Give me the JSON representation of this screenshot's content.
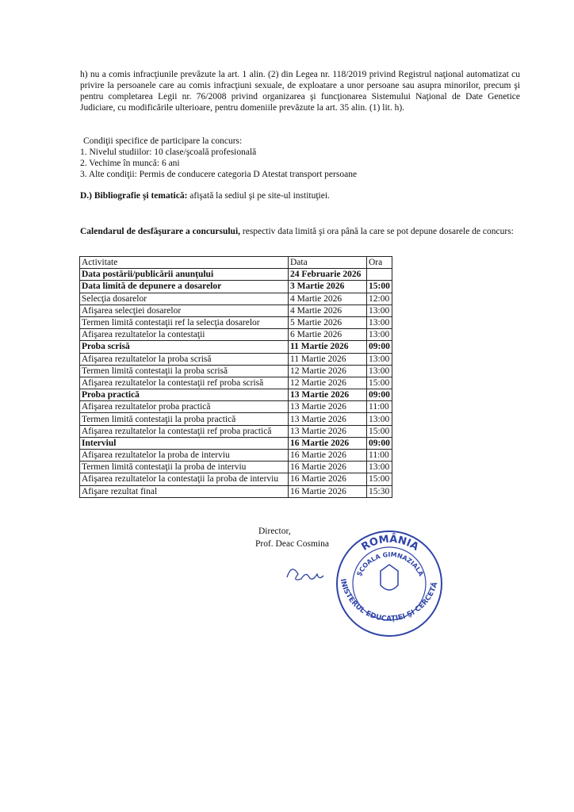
{
  "paragraph_h": "h) nu a comis infracţiunile prevăzute la art. 1 alin. (2) din Legea nr. 118/2019 privind Registrul naţional automatizat cu privire la persoanele care au comis infracţiuni sexuale, de exploatare a unor persoane sau asupra minorilor, precum şi pentru completarea Legii nr. 76/2008 privind organizarea şi funcţionarea Sistemului Naţional de Date Genetice Judiciare, cu modificările ulterioare, pentru domeniile prevăzute la art. 35 alin. (1) lit. h).",
  "conditions": {
    "title": "Condiţii specifice de participare la concurs:",
    "items": [
      "1. Nivelul studiilor: 10 clase/şcoală profesională",
      "2. Vechime în muncă:  6 ani",
      "3. Alte condiţii: Permis de conducere categoria D Atestat transport persoane"
    ]
  },
  "bibliography": {
    "label": "D.) Bibliografie şi tematică:",
    "text": " afişată la sediul şi pe site-ul instituţiei."
  },
  "calendar": {
    "label": "Calendarul de desfăşurare a concursului,",
    "text": " respectiv data limită şi ora până la care se pot depune dosarele de concurs:"
  },
  "table": {
    "header": [
      "Activitate",
      "Data",
      "Ora"
    ],
    "rows": [
      [
        "Data postării/publicării anunţului",
        "24 Februarie 2026",
        ""
      ],
      [
        "Data limită de depunere a dosarelor",
        "3 Martie 2026",
        "15:00"
      ],
      [
        "Selecţia dosarelor",
        "4 Martie 2026",
        "12:00"
      ],
      [
        "Afişarea selecţiei dosarelor",
        "4 Martie 2026",
        "13:00"
      ],
      [
        "Termen limită contestaţii ref la selecţia dosarelor",
        "5 Martie 2026",
        "13:00"
      ],
      [
        "Afişarea rezultatelor la contestaţii",
        "6 Martie 2026",
        "13:00"
      ],
      [
        "Proba scrisă",
        "11 Martie 2026",
        "09:00"
      ],
      [
        "Afişarea rezultatelor la proba scrisă",
        "11 Martie 2026",
        "13:00"
      ],
      [
        "Termen limită contestaţii la proba scrisă",
        "12 Martie 2026",
        "13:00"
      ],
      [
        "Afişarea rezultatelor la contestaţii ref proba scrisă",
        "12 Martie 2026",
        "15:00"
      ],
      [
        "Proba practică",
        "13 Martie 2026",
        "09:00"
      ],
      [
        "Afişarea rezultatelor proba practică",
        "13 Martie 2026",
        "11:00"
      ],
      [
        "Termen limită contestaţii la proba practică",
        "13 Martie 2026",
        "13:00"
      ],
      [
        "Afişarea rezultatelor la contestaţii ref proba practică",
        "13 Martie 2026",
        "15:00"
      ],
      [
        "Interviul",
        "16 Martie 2026",
        "09:00"
      ],
      [
        "Afişarea rezultatelor la proba de interviu",
        "16 Martie 2026",
        "11:00"
      ],
      [
        "Termen limită contestaţii la proba de interviu",
        "16 Martie 2026",
        "13:00"
      ],
      [
        "Afişarea rezultatelor la contestaţii la proba de interviu",
        "16 Martie 2026",
        "15:00"
      ],
      [
        "Afişare rezultat final",
        "16 Martie 2026",
        "15:30"
      ]
    ]
  },
  "signature": {
    "role": "Director,",
    "name": "Prof. Deac Cosmina"
  },
  "stamp": {
    "top": "ROMÂNIA",
    "bottom": "MINISTERUL EDUCAŢIEI ŞI CERCETĂRII",
    "inner": "ŞCOALA GIMNAZIALĂ"
  }
}
